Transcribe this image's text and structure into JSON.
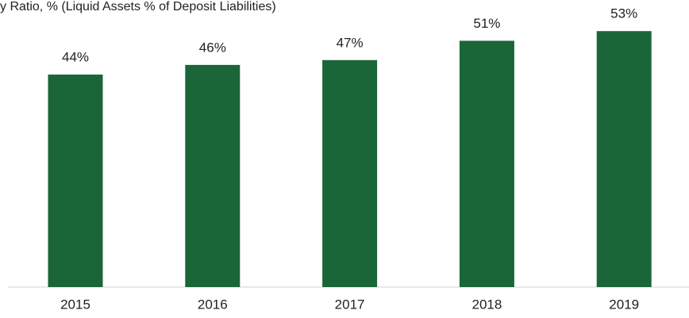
{
  "chart_data": {
    "type": "bar",
    "title": "y Ratio, % (Liquid Assets % of Deposit Liabilities)",
    "categories": [
      "2015",
      "2016",
      "2017",
      "2018",
      "2019"
    ],
    "values": [
      44,
      46,
      47,
      51,
      53
    ],
    "value_labels": [
      "44%",
      "46%",
      "47%",
      "51%",
      "53%"
    ],
    "color": "#1a6638"
  }
}
